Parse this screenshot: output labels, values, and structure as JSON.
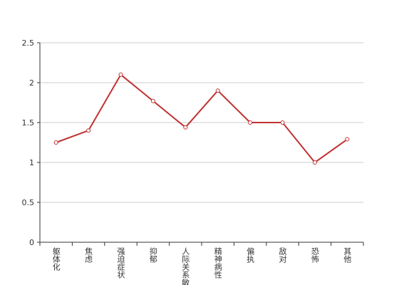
{
  "chart_data": {
    "type": "line",
    "categories": [
      "躯体化",
      "焦虑",
      "强迫症状",
      "抑郁",
      "人际关系敏感",
      "精神病性",
      "偏执",
      "敌对",
      "恐怖",
      "其他"
    ],
    "series": [
      {
        "color": "#c03232",
        "values": [
          1.25,
          1.4,
          2.1,
          1.77,
          1.44,
          1.9,
          1.5,
          1.5,
          1.0,
          1.29
        ]
      }
    ],
    "ylim": [
      0,
      2.5
    ],
    "yticks": [
      0,
      0.5,
      1,
      1.5,
      2,
      2.5
    ],
    "grid": true
  }
}
